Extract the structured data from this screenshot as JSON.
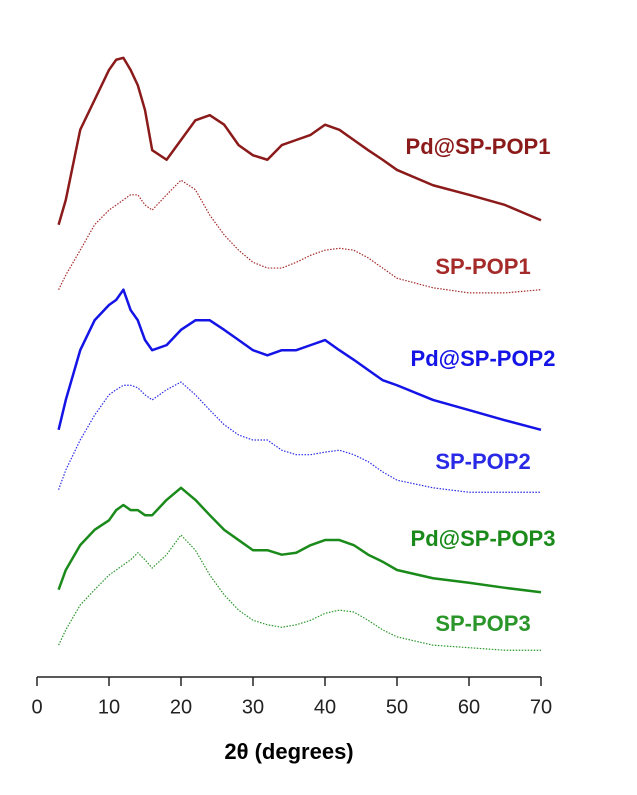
{
  "chart_data": {
    "type": "line",
    "xlabel": "2θ (degrees)",
    "x": [
      3,
      4,
      6,
      8,
      10,
      11,
      12,
      13,
      14,
      15,
      16,
      18,
      20,
      22,
      24,
      26,
      28,
      30,
      32,
      34,
      36,
      38,
      40,
      42,
      44,
      46,
      48,
      50,
      55,
      60,
      65,
      70
    ],
    "xlim": [
      0,
      70
    ],
    "xticks": [
      0,
      10,
      20,
      30,
      40,
      50,
      60,
      70
    ],
    "ylim": [
      0,
      100
    ],
    "series": [
      {
        "name": "Pd@SP-POP1",
        "color": "#8b1a1a",
        "dotted": false,
        "values": [
          71.0,
          74.9,
          85.9,
          90.6,
          95.3,
          96.9,
          97.2,
          95.3,
          92.9,
          89.0,
          82.7,
          81.2,
          84.3,
          87.4,
          88.2,
          86.7,
          83.5,
          81.9,
          81.2,
          83.5,
          84.3,
          85.1,
          86.7,
          85.9,
          84.3,
          82.7,
          81.2,
          79.6,
          77.2,
          75.7,
          74.1,
          71.7
        ]
      },
      {
        "name": "SP-POP1",
        "color": "#a52a2a",
        "dotted": true,
        "values": [
          60.8,
          63.1,
          67.0,
          71.0,
          73.3,
          74.1,
          74.9,
          75.7,
          75.7,
          74.1,
          73.3,
          75.7,
          78.0,
          76.5,
          72.5,
          69.4,
          67.0,
          65.1,
          64.2,
          64.2,
          65.1,
          66.2,
          67.0,
          67.3,
          67.0,
          65.8,
          64.2,
          62.6,
          61.1,
          60.3,
          60.3,
          60.8
        ]
      },
      {
        "name": "Pd@SP-POP2",
        "color": "#1414e6",
        "dotted": false,
        "values": [
          38.8,
          43.5,
          51.3,
          56.0,
          58.4,
          59.2,
          60.8,
          57.6,
          56.0,
          52.9,
          51.3,
          52.1,
          54.5,
          56.0,
          56.0,
          54.5,
          52.9,
          51.3,
          50.5,
          51.3,
          51.3,
          52.1,
          52.9,
          51.3,
          49.8,
          48.2,
          46.6,
          45.8,
          43.5,
          41.9,
          40.3,
          38.8
        ]
      },
      {
        "name": "SP-POP2",
        "color": "#2a2ae6",
        "dotted": true,
        "values": [
          29.4,
          32.5,
          37.2,
          41.1,
          44.3,
          45.1,
          45.8,
          45.8,
          45.4,
          44.3,
          43.5,
          45.1,
          46.3,
          44.3,
          41.9,
          39.6,
          38.0,
          37.2,
          37.2,
          35.6,
          34.9,
          34.9,
          35.3,
          35.6,
          34.9,
          33.8,
          32.2,
          30.9,
          29.7,
          29.0,
          29.0,
          29.0
        ]
      },
      {
        "name": "Pd@SP-POP3",
        "color": "#1a8a1a",
        "dotted": false,
        "values": [
          13.7,
          16.8,
          20.7,
          23.1,
          24.6,
          26.2,
          27.0,
          26.2,
          26.2,
          25.4,
          25.4,
          27.8,
          29.7,
          27.8,
          25.4,
          23.1,
          21.5,
          19.9,
          19.9,
          19.2,
          19.5,
          20.7,
          21.5,
          21.5,
          20.7,
          19.2,
          18.1,
          16.8,
          15.5,
          14.8,
          14.0,
          13.3
        ]
      },
      {
        "name": "SP-POP3",
        "color": "#2a962a",
        "dotted": true,
        "values": [
          5.0,
          7.4,
          11.3,
          13.7,
          16.0,
          16.8,
          17.6,
          18.4,
          19.5,
          18.4,
          17.1,
          19.2,
          22.3,
          19.9,
          16.0,
          12.9,
          10.5,
          8.9,
          8.2,
          7.8,
          8.2,
          8.9,
          10.0,
          10.5,
          10.2,
          8.9,
          7.4,
          6.3,
          5.0,
          4.6,
          4.2,
          4.2
        ]
      }
    ]
  }
}
